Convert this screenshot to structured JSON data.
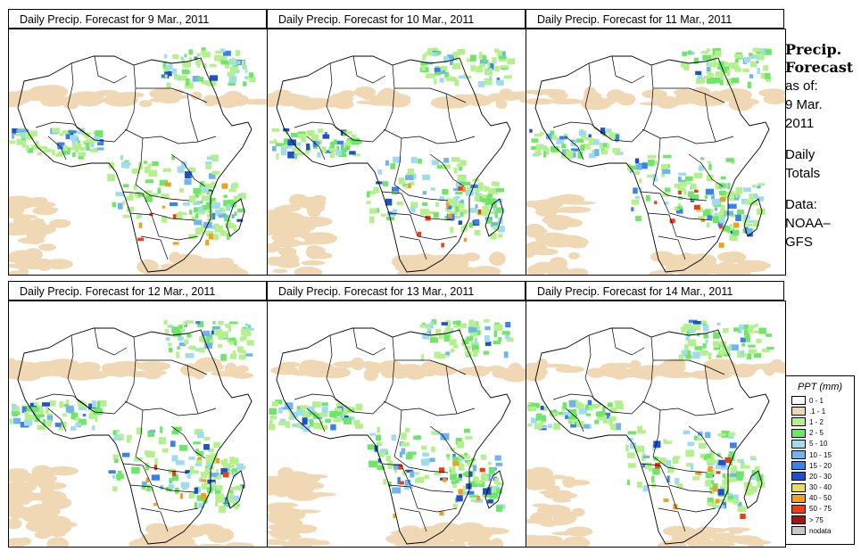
{
  "panels": [
    {
      "title": "Daily Precip. Forecast for  9 Mar., 2011"
    },
    {
      "title": "Daily Precip. Forecast for  10 Mar., 2011"
    },
    {
      "title": "Daily Precip. Forecast for  11 Mar., 2011"
    },
    {
      "title": "Daily Precip. Forecast for  12 Mar., 2011"
    },
    {
      "title": "Daily Precip. Forecast for  13 Mar., 2011"
    },
    {
      "title": "Daily Precip. Forecast for  14 Mar., 2011"
    }
  ],
  "sidebar": {
    "heading_line1": "Precip.",
    "heading_line2": "Forecast",
    "asof_label": "as of:",
    "asof_date_line1": "9 Mar.",
    "asof_date_line2": "2011",
    "totals_line1": "Daily",
    "totals_line2": "Totals",
    "data_line1": "Data:",
    "data_line2": "NOAA–",
    "data_line3": "GFS"
  },
  "legend": {
    "title": "PPT (mm)",
    "items": [
      {
        "label": "0 - 1",
        "color": "#ffffff"
      },
      {
        "label": ".1 - 1",
        "color": "#f0d8b4"
      },
      {
        "label": "1 - 2",
        "color": "#b4f08c"
      },
      {
        "label": "2 - 5",
        "color": "#6ee668"
      },
      {
        "label": "5 - 10",
        "color": "#a0dcf0"
      },
      {
        "label": "10 - 15",
        "color": "#6eb4f0"
      },
      {
        "label": "15 - 20",
        "color": "#3c82e6"
      },
      {
        "label": "20 - 30",
        "color": "#1e50c8"
      },
      {
        "label": "30 - 40",
        "color": "#f0dc50"
      },
      {
        "label": "40 - 50",
        "color": "#f0a01e"
      },
      {
        "label": "50 - 75",
        "color": "#f03c14"
      },
      {
        "label": "> 75",
        "color": "#a01414"
      },
      {
        "label": "nodata",
        "color": "#c8c8c8"
      }
    ]
  }
}
